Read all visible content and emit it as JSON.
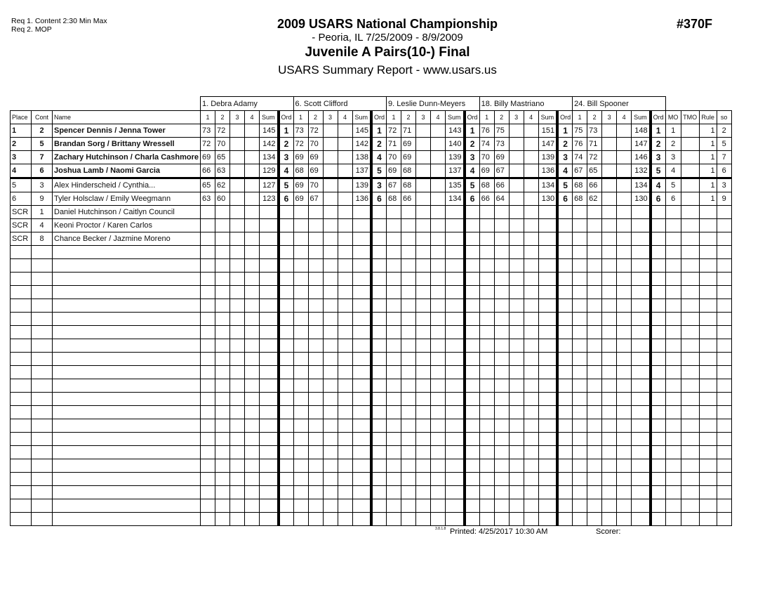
{
  "header": {
    "req1": "Req  1.  Content  2:30 Min Max",
    "req2": "Req  2.  MOP",
    "title": "2009 USARS National Championship",
    "subtitle": "- Peoria, IL  7/25/2009 - 8/9/2009",
    "event": "Juvenile A Pairs(10-) Final",
    "report": "USARS Summary Report - www.usars.us",
    "event_number": "#370F"
  },
  "columns": {
    "place": "Place",
    "cont": "Cont",
    "name": "Name",
    "marks": [
      "1",
      "2",
      "3",
      "4"
    ],
    "sum": "Sum",
    "ord": "Ord",
    "mo": "MO",
    "tmo": "TMO",
    "rule": "Rule",
    "so": "so"
  },
  "judges": [
    "1.  Debra Adamy",
    "6.  Scott Clifford",
    "9.  Leslie Dunn-Meyers",
    "18.  Billy  Mastriano",
    "24.  Bill Spooner"
  ],
  "rows": [
    {
      "place": "1",
      "cont": "2",
      "name": "Spencer Dennis / Jenna Tower",
      "bold": true,
      "scores": [
        [
          "73",
          "72",
          "",
          "",
          "145",
          "1"
        ],
        [
          "73",
          "72",
          "",
          "",
          "145",
          "1"
        ],
        [
          "72",
          "71",
          "",
          "",
          "143",
          "1"
        ],
        [
          "76",
          "75",
          "",
          "",
          "151",
          "1"
        ],
        [
          "75",
          "73",
          "",
          "",
          "148",
          "1"
        ]
      ],
      "mo": "1",
      "tmo": "",
      "rule": "1",
      "so": "2"
    },
    {
      "place": "2",
      "cont": "5",
      "name": "Brandan Sorg / Brittany Wressell",
      "bold": true,
      "scores": [
        [
          "72",
          "70",
          "",
          "",
          "142",
          "2"
        ],
        [
          "72",
          "70",
          "",
          "",
          "142",
          "2"
        ],
        [
          "71",
          "69",
          "",
          "",
          "140",
          "2"
        ],
        [
          "74",
          "73",
          "",
          "",
          "147",
          "2"
        ],
        [
          "76",
          "71",
          "",
          "",
          "147",
          "2"
        ]
      ],
      "mo": "2",
      "tmo": "",
      "rule": "1",
      "so": "5"
    },
    {
      "place": "3",
      "cont": "7",
      "name": "Zachary Hutchinson / Charla Cashmore",
      "bold": true,
      "scores": [
        [
          "69",
          "65",
          "",
          "",
          "134",
          "3"
        ],
        [
          "69",
          "69",
          "",
          "",
          "138",
          "4"
        ],
        [
          "70",
          "69",
          "",
          "",
          "139",
          "3"
        ],
        [
          "70",
          "69",
          "",
          "",
          "139",
          "3"
        ],
        [
          "74",
          "72",
          "",
          "",
          "146",
          "3"
        ]
      ],
      "mo": "3",
      "tmo": "",
      "rule": "1",
      "so": "7"
    },
    {
      "place": "4",
      "cont": "6",
      "name": "Joshua Lamb / Naomi Garcia",
      "bold": true,
      "scores": [
        [
          "66",
          "63",
          "",
          "",
          "129",
          "4"
        ],
        [
          "68",
          "69",
          "",
          "",
          "137",
          "5"
        ],
        [
          "69",
          "68",
          "",
          "",
          "137",
          "4"
        ],
        [
          "69",
          "67",
          "",
          "",
          "136",
          "4"
        ],
        [
          "67",
          "65",
          "",
          "",
          "132",
          "5"
        ]
      ],
      "mo": "4",
      "tmo": "",
      "rule": "1",
      "so": "6"
    },
    {
      "place": "5",
      "cont": "3",
      "name": "Alex Hinderscheid / Cynthia...",
      "bold": false,
      "scores": [
        [
          "65",
          "62",
          "",
          "",
          "127",
          "5"
        ],
        [
          "69",
          "70",
          "",
          "",
          "139",
          "3"
        ],
        [
          "67",
          "68",
          "",
          "",
          "135",
          "5"
        ],
        [
          "68",
          "66",
          "",
          "",
          "134",
          "5"
        ],
        [
          "68",
          "66",
          "",
          "",
          "134",
          "4"
        ]
      ],
      "mo": "5",
      "tmo": "",
      "rule": "1",
      "so": "3"
    },
    {
      "place": "6",
      "cont": "9",
      "name": "Tyler Holsclaw / Emily Weegmann",
      "bold": false,
      "scores": [
        [
          "63",
          "60",
          "",
          "",
          "123",
          "6"
        ],
        [
          "69",
          "67",
          "",
          "",
          "136",
          "6"
        ],
        [
          "68",
          "66",
          "",
          "",
          "134",
          "6"
        ],
        [
          "66",
          "64",
          "",
          "",
          "130",
          "6"
        ],
        [
          "68",
          "62",
          "",
          "",
          "130",
          "6"
        ]
      ],
      "mo": "6",
      "tmo": "",
      "rule": "1",
      "so": "9"
    },
    {
      "place": "SCR",
      "cont": "1",
      "name": "Daniel Hutchinson / Caitlyn Council",
      "bold": false,
      "scores": [],
      "mo": "",
      "tmo": "",
      "rule": "",
      "so": ""
    },
    {
      "place": "SCR",
      "cont": "4",
      "name": "Keoni Proctor / Karen Carlos",
      "bold": false,
      "scores": [],
      "mo": "",
      "tmo": "",
      "rule": "",
      "so": ""
    },
    {
      "place": "SCR",
      "cont": "8",
      "name": "Chance Becker / Jazmine Moreno",
      "bold": false,
      "scores": [],
      "mo": "",
      "tmo": "",
      "rule": "",
      "so": ""
    }
  ],
  "footer": {
    "version": "3.8.1.8",
    "printed": "Printed:  4/25/2017  10:30 AM",
    "scorer": "Scorer:"
  }
}
